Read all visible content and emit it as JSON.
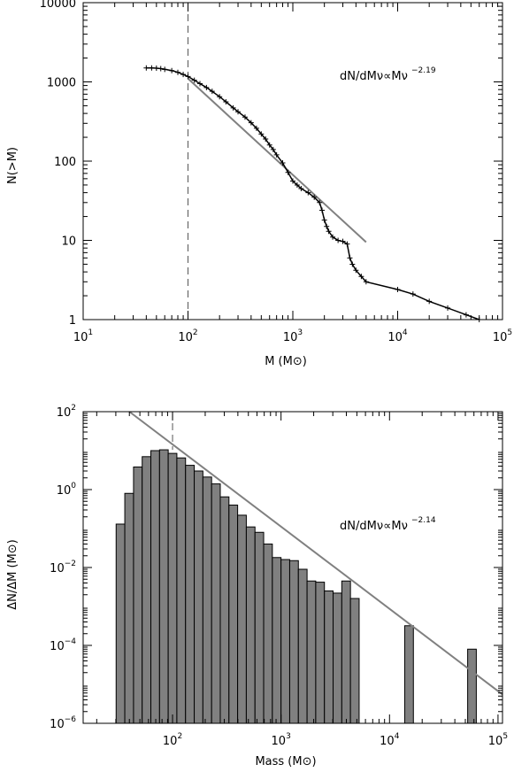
{
  "chart_data": [
    {
      "type": "line",
      "scale": "log-log",
      "xlabel": "M (M⊙)",
      "ylabel": "N(>M)",
      "xlim": [
        10,
        100000
      ],
      "ylim": [
        1,
        10000
      ],
      "xticks": [
        {
          "v": 10,
          "base": "10",
          "exp": "1"
        },
        {
          "v": 100,
          "base": "10",
          "exp": "2"
        },
        {
          "v": 1000,
          "base": "10",
          "exp": "3"
        },
        {
          "v": 10000,
          "base": "10",
          "exp": "4"
        },
        {
          "v": 100000,
          "base": "10",
          "exp": "5"
        }
      ],
      "yticks": [
        {
          "v": 1,
          "label": "1"
        },
        {
          "v": 10,
          "label": "10"
        },
        {
          "v": 100,
          "label": "100"
        },
        {
          "v": 1000,
          "label": "1000"
        },
        {
          "v": 10000,
          "label": "10000"
        }
      ],
      "annotation": {
        "text": "dN/dMν∝Mν",
        "exponent": "−2.19"
      },
      "vline": {
        "x": 100,
        "style": "dashed"
      },
      "series": [
        {
          "style": "line-with-markers",
          "color": "#000000",
          "points": [
            [
              40,
              1500
            ],
            [
              45,
              1500
            ],
            [
              50,
              1490
            ],
            [
              55,
              1470
            ],
            [
              60,
              1440
            ],
            [
              70,
              1390
            ],
            [
              80,
              1320
            ],
            [
              90,
              1240
            ],
            [
              100,
              1170
            ],
            [
              115,
              1050
            ],
            [
              130,
              950
            ],
            [
              150,
              850
            ],
            [
              170,
              760
            ],
            [
              200,
              650
            ],
            [
              230,
              560
            ],
            [
              270,
              470
            ],
            [
              300,
              420
            ],
            [
              350,
              360
            ],
            [
              400,
              305
            ],
            [
              450,
              260
            ],
            [
              500,
              220
            ],
            [
              550,
              190
            ],
            [
              600,
              160
            ],
            [
              650,
              140
            ],
            [
              700,
              120
            ],
            [
              800,
              95
            ],
            [
              900,
              72
            ],
            [
              1000,
              56
            ],
            [
              1100,
              50
            ],
            [
              1200,
              45
            ],
            [
              1400,
              40
            ],
            [
              1600,
              35
            ],
            [
              1800,
              30
            ],
            [
              1900,
              24
            ],
            [
              2000,
              18
            ],
            [
              2100,
              15
            ],
            [
              2200,
              13
            ],
            [
              2400,
              11
            ],
            [
              2700,
              10
            ],
            [
              3000,
              9.7
            ],
            [
              3300,
              9
            ],
            [
              3500,
              6
            ],
            [
              3700,
              5
            ],
            [
              4000,
              4.2
            ],
            [
              4500,
              3.5
            ],
            [
              5000,
              3
            ],
            [
              10000,
              2.4
            ],
            [
              14000,
              2.1
            ],
            [
              20000,
              1.7
            ],
            [
              30000,
              1.4
            ],
            [
              45000,
              1.15
            ],
            [
              60000,
              1
            ]
          ]
        },
        {
          "style": "fit-line",
          "color": "#808080",
          "points": [
            [
              100,
              1100
            ],
            [
              5000,
              9.5
            ]
          ]
        }
      ]
    },
    {
      "type": "bar",
      "scale": "log-log",
      "xlabel": "Mass (M⊙)",
      "ylabel": "ΔN/ΔM (M⊙)",
      "xlim": [
        15,
        110000
      ],
      "ylim": [
        1e-06,
        100
      ],
      "xticks": [
        {
          "v": 100,
          "base": "10",
          "exp": "2"
        },
        {
          "v": 1000,
          "base": "10",
          "exp": "3"
        },
        {
          "v": 10000,
          "base": "10",
          "exp": "4"
        },
        {
          "v": 100000,
          "base": "10",
          "exp": "5"
        }
      ],
      "yticks": [
        {
          "v": 1e-06,
          "base": "10",
          "exp": "−6"
        },
        {
          "v": 0.0001,
          "base": "10",
          "exp": "−4"
        },
        {
          "v": 0.01,
          "base": "10",
          "exp": "−2"
        },
        {
          "v": 1,
          "base": "10",
          "exp": "0"
        },
        {
          "v": 100,
          "base": "10",
          "exp": "2"
        }
      ],
      "annotation": {
        "text": "dN/dMν∝Mν",
        "exponent": "−2.14"
      },
      "vline": {
        "x": 100,
        "style": "dashed"
      },
      "bar_color": "#808080",
      "bins": [
        {
          "x0": 30.2,
          "x1": 36.3,
          "value": 0.13
        },
        {
          "x0": 36.3,
          "x1": 43.7,
          "value": 0.8
        },
        {
          "x0": 43.7,
          "x1": 52.5,
          "value": 3.8
        },
        {
          "x0": 52.5,
          "x1": 63.1,
          "value": 7.0
        },
        {
          "x0": 63.1,
          "x1": 75.9,
          "value": 10.0
        },
        {
          "x0": 75.9,
          "x1": 91.2,
          "value": 10.5
        },
        {
          "x0": 91.2,
          "x1": 109.6,
          "value": 8.5
        },
        {
          "x0": 109.6,
          "x1": 131.8,
          "value": 6.5
        },
        {
          "x0": 131.8,
          "x1": 158.5,
          "value": 4.2
        },
        {
          "x0": 158.5,
          "x1": 190.5,
          "value": 3.0
        },
        {
          "x0": 190.5,
          "x1": 229.1,
          "value": 2.1
        },
        {
          "x0": 229.1,
          "x1": 275.4,
          "value": 1.4
        },
        {
          "x0": 275.4,
          "x1": 331.1,
          "value": 0.65
        },
        {
          "x0": 331.1,
          "x1": 398.1,
          "value": 0.4
        },
        {
          "x0": 398.1,
          "x1": 478.6,
          "value": 0.22
        },
        {
          "x0": 478.6,
          "x1": 575.4,
          "value": 0.11
        },
        {
          "x0": 575.4,
          "x1": 691.8,
          "value": 0.08
        },
        {
          "x0": 691.8,
          "x1": 831.8,
          "value": 0.04
        },
        {
          "x0": 831.8,
          "x1": 1000,
          "value": 0.018
        },
        {
          "x0": 1000,
          "x1": 1202,
          "value": 0.016
        },
        {
          "x0": 1202,
          "x1": 1445,
          "value": 0.015
        },
        {
          "x0": 1445,
          "x1": 1738,
          "value": 0.009
        },
        {
          "x0": 1738,
          "x1": 2089,
          "value": 0.0045
        },
        {
          "x0": 2089,
          "x1": 2512,
          "value": 0.0042
        },
        {
          "x0": 2512,
          "x1": 3020,
          "value": 0.0025
        },
        {
          "x0": 3020,
          "x1": 3631,
          "value": 0.0022
        },
        {
          "x0": 3631,
          "x1": 4365,
          "value": 0.0045
        },
        {
          "x0": 4365,
          "x1": 5248,
          "value": 0.0016
        },
        {
          "x0": 13800,
          "x1": 16600,
          "value": 0.00032
        },
        {
          "x0": 52500,
          "x1": 63100,
          "value": 8e-05
        }
      ],
      "series": [
        {
          "style": "fit-line",
          "color": "#808080",
          "points": [
            [
              40,
              100
            ],
            [
              110000,
              5.5e-06
            ]
          ]
        }
      ]
    }
  ]
}
